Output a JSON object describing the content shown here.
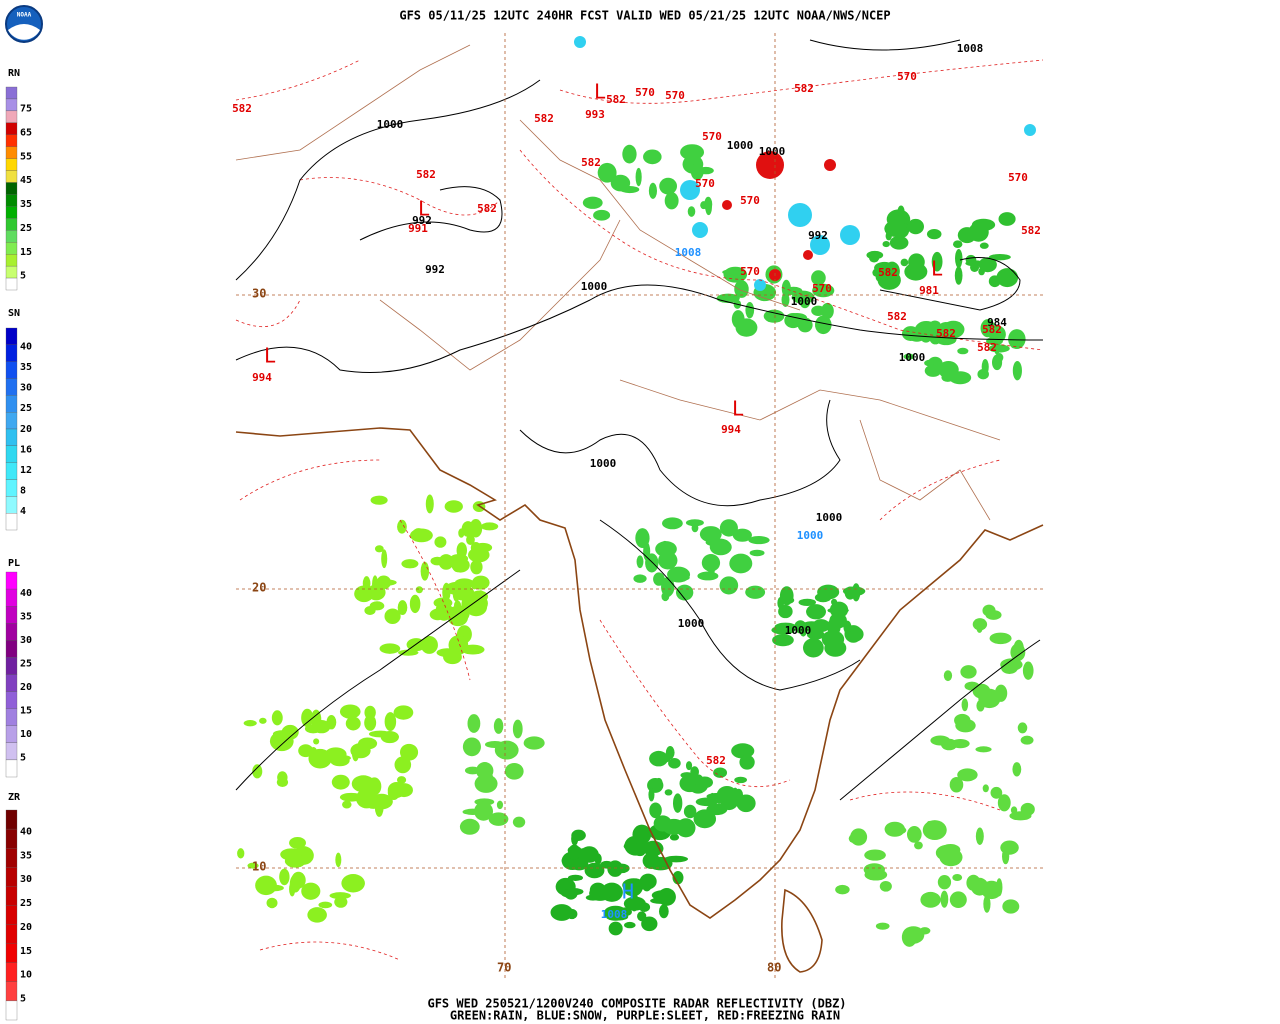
{
  "header": "GFS 05/11/25 12UTC 240HR FCST VALID WED 05/21/25 12UTC NOAA/NWS/NCEP",
  "logo": "NOAA",
  "footer": [
    "GFS WED 250521/1200V240 COMPOSITE RADAR REFLECTIVITY (DBZ)",
    "GREEN:RAIN, BLUE:SNOW, PURPLE:SLEET, RED:FREEZING RAIN"
  ],
  "legends": [
    {
      "title": "RN",
      "labels": [
        "75",
        "65",
        "55",
        "45",
        "35",
        "25",
        "15",
        "5"
      ],
      "colors": [
        "#8a6fd6",
        "#a890e6",
        "#f0a8b8",
        "#d00000",
        "#ff3000",
        "#ff8c00",
        "#ffd700",
        "#f0e040",
        "#006400",
        "#008c00",
        "#00b000",
        "#30c830",
        "#60dc60",
        "#80ec50",
        "#a8f030",
        "#c8ff70",
        "#ffffff"
      ]
    },
    {
      "title": "SN",
      "labels": [
        "40",
        "35",
        "30",
        "25",
        "20",
        "16",
        "12",
        "8",
        "4"
      ],
      "colors": [
        "#0000c8",
        "#0020e0",
        "#1050f0",
        "#2070f0",
        "#3090f0",
        "#40a8f0",
        "#30c0f0",
        "#30d8f0",
        "#40e8f8",
        "#60f4ff",
        "#90faff",
        "#ffffff"
      ]
    },
    {
      "title": "PL",
      "labels": [
        "40",
        "35",
        "30",
        "25",
        "20",
        "15",
        "10",
        "5"
      ],
      "colors": [
        "#ff00ff",
        "#e000e0",
        "#c000c0",
        "#a000a0",
        "#800080",
        "#7020a0",
        "#8040c0",
        "#9060d8",
        "#a080e0",
        "#b8a0e8",
        "#d0c0f0",
        "#ffffff"
      ]
    },
    {
      "title": "ZR",
      "labels": [
        "40",
        "35",
        "30",
        "25",
        "20",
        "15",
        "10",
        "5"
      ],
      "colors": [
        "#700000",
        "#880000",
        "#a00000",
        "#b80000",
        "#c80000",
        "#d80000",
        "#e00000",
        "#f00000",
        "#ff2020",
        "#ff4040",
        "#ffffff"
      ]
    }
  ],
  "lat_labels": [
    "30",
    "20",
    "10"
  ],
  "lon_labels": [
    "70",
    "80"
  ],
  "map_labels": [
    {
      "text": "1000",
      "color": "#000000"
    },
    {
      "text": "1000",
      "color": "#000000"
    },
    {
      "text": "1000",
      "color": "#000000"
    },
    {
      "text": "992",
      "color": "#000000"
    },
    {
      "text": "992",
      "color": "#000000"
    },
    {
      "text": "1000",
      "color": "#000000"
    },
    {
      "text": "992",
      "color": "#000000"
    },
    {
      "text": "1000",
      "color": "#000000"
    },
    {
      "text": "984",
      "color": "#000000"
    },
    {
      "text": "1000",
      "color": "#000000"
    },
    {
      "text": "1000",
      "color": "#000000"
    },
    {
      "text": "1000",
      "color": "#000000"
    },
    {
      "text": "1000",
      "color": "#000000"
    },
    {
      "text": "1000",
      "color": "#000000"
    },
    {
      "text": "1008",
      "color": "#000000"
    },
    {
      "text": "582",
      "color": "#e00000"
    },
    {
      "text": "582",
      "color": "#e00000"
    },
    {
      "text": "993",
      "color": "#e00000"
    },
    {
      "text": "570",
      "color": "#e00000"
    },
    {
      "text": "570",
      "color": "#e00000"
    },
    {
      "text": "582",
      "color": "#e00000"
    },
    {
      "text": "570",
      "color": "#e00000"
    },
    {
      "text": "570",
      "color": "#e00000"
    },
    {
      "text": "582",
      "color": "#e00000"
    },
    {
      "text": "582",
      "color": "#e00000"
    },
    {
      "text": "582",
      "color": "#e00000"
    },
    {
      "text": "991",
      "color": "#e00000"
    },
    {
      "text": "570",
      "color": "#e00000"
    },
    {
      "text": "570",
      "color": "#e00000"
    },
    {
      "text": "570",
      "color": "#e00000"
    },
    {
      "text": "570",
      "color": "#e00000"
    },
    {
      "text": "582",
      "color": "#e00000"
    },
    {
      "text": "981",
      "color": "#e00000"
    },
    {
      "text": "582",
      "color": "#e00000"
    },
    {
      "text": "582",
      "color": "#e00000"
    },
    {
      "text": "582",
      "color": "#e00000"
    },
    {
      "text": "582",
      "color": "#e00000"
    },
    {
      "text": "570",
      "color": "#e00000"
    },
    {
      "text": "582",
      "color": "#e00000"
    },
    {
      "text": "582",
      "color": "#e00000"
    },
    {
      "text": "994",
      "color": "#e00000"
    },
    {
      "text": "994",
      "color": "#e00000"
    },
    {
      "text": "582",
      "color": "#e00000"
    },
    {
      "text": "L",
      "color": "#e00000"
    },
    {
      "text": "L",
      "color": "#e00000"
    },
    {
      "text": "L",
      "color": "#e00000"
    },
    {
      "text": "L",
      "color": "#e00000"
    },
    {
      "text": "L",
      "color": "#e00000"
    },
    {
      "text": "1008",
      "color": "#1e90ff"
    },
    {
      "text": "1000",
      "color": "#1e90ff"
    },
    {
      "text": "1008",
      "color": "#1e90ff"
    },
    {
      "text": "H",
      "color": "#1e90ff"
    }
  ]
}
